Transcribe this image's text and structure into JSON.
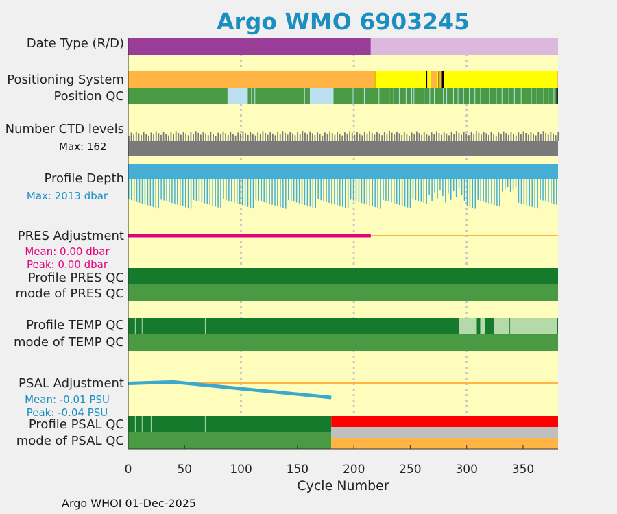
{
  "title": "Argo WMO 6903245",
  "footer": "Argo WHOI 01-Dec-2025",
  "rows": {
    "date_type": "Date Type (R/D)",
    "positioning_system": "Positioning System",
    "position_qc": "Position QC",
    "ctd_levels": "Number CTD levels",
    "ctd_max": "Max: 162",
    "profile_depth": "Profile Depth",
    "depth_max": "Max: 2013 dbar",
    "pres_adjustment": "PRES Adjustment",
    "pres_mean": "Mean: 0.00 dbar",
    "pres_peak": "Peak: 0.00 dbar",
    "profile_pres_qc": "Profile PRES QC",
    "mode_pres_qc": "mode of PRES QC",
    "profile_temp_qc": "Profile TEMP QC",
    "mode_temp_qc": "mode of TEMP QC",
    "psal_adjustment": "PSAL Adjustment",
    "psal_mean": "Mean: -0.01 PSU",
    "psal_peak": "Peak: -0.04 PSU",
    "profile_psal_qc": "Profile PSAL QC",
    "mode_psal_qc": "mode of PSAL QC"
  },
  "colors": {
    "background": "#fffdbb",
    "title": "#1a8fc0",
    "realtime": "#993d99",
    "delayed": "#dcb8dc",
    "gps": "#ffb444",
    "iridium": "#ffff00",
    "qc_good": "#4a9a44",
    "qc_dark": "#167a2c",
    "qc_light": "#bde0f0",
    "qc_pale": "#b5d9a8",
    "ctd": "#7a7a7a",
    "depth": "#45aed4",
    "pres_adj": "#e6007e",
    "psal_adj": "#3ba8d0",
    "flag_red": "#ff0000",
    "flag_grey": "#bfbfbf",
    "zero_line": "#ffb444"
  },
  "chart_data": {
    "type": "bar",
    "title": "Argo WMO 6903245",
    "xlabel": "Cycle Number",
    "xlim": [
      0,
      381
    ],
    "xticks": [
      0,
      50,
      100,
      150,
      200,
      250,
      300,
      350
    ],
    "grid_x": [
      100,
      200,
      300
    ],
    "ctd_levels_max": 162,
    "profile_depth_max_dbar": 2013,
    "date_type": [
      {
        "from": 0,
        "to": 215,
        "mode": "R"
      },
      {
        "from": 215,
        "to": 381,
        "mode": "D"
      }
    ],
    "positioning_system": [
      {
        "from": 0,
        "to": 220,
        "system": "GPS"
      },
      {
        "from": 220,
        "to": 381,
        "system": "IRIDIUM"
      }
    ],
    "position_qc_light_segments": [
      [
        88,
        106
      ],
      [
        161,
        182
      ]
    ],
    "pres_adjustment": {
      "mean_dbar": 0.0,
      "peak_dbar": 0.0,
      "adjusted_until_cycle": 215
    },
    "psal_adjustment": {
      "mean_psu": -0.01,
      "peak_psu": -0.04,
      "points": [
        [
          0,
          -0.001
        ],
        [
          40,
          0.003
        ],
        [
          180,
          -0.04
        ]
      ]
    },
    "profile_temp_qc_pale_from": 293,
    "profile_psal_qc_flag_from": 180
  }
}
